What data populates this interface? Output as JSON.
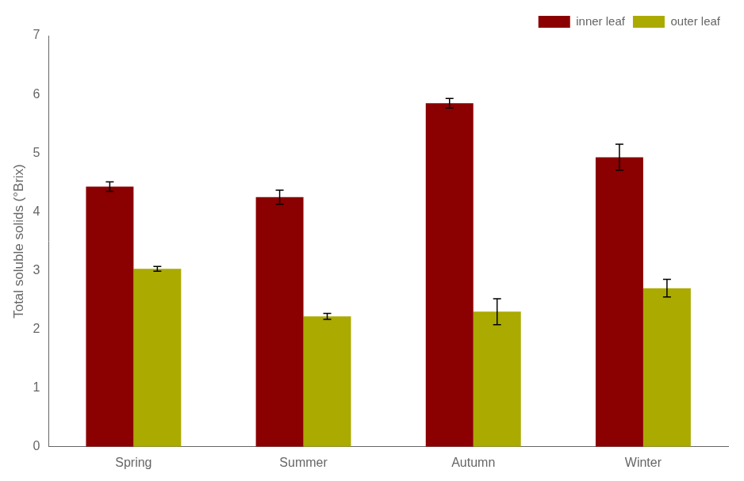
{
  "chart_data": {
    "type": "bar",
    "categories": [
      "Spring",
      "Summer",
      "Autumn",
      "Winter"
    ],
    "series": [
      {
        "name": "inner leaf",
        "color": "#8B0000",
        "values": [
          4.43,
          4.25,
          5.85,
          4.93
        ],
        "errors": [
          0.08,
          0.12,
          0.08,
          0.22
        ]
      },
      {
        "name": "outer leaf",
        "color": "#AAAA00",
        "values": [
          3.03,
          2.22,
          2.3,
          2.7
        ],
        "errors": [
          0.04,
          0.05,
          0.22,
          0.15
        ]
      }
    ],
    "ylabel": "Total soluble solids (°Brix)",
    "ylim": [
      0,
      7
    ],
    "yticks": [
      0,
      1,
      2,
      3,
      4,
      5,
      6,
      7
    ],
    "legend": "upper right",
    "grid": false
  }
}
